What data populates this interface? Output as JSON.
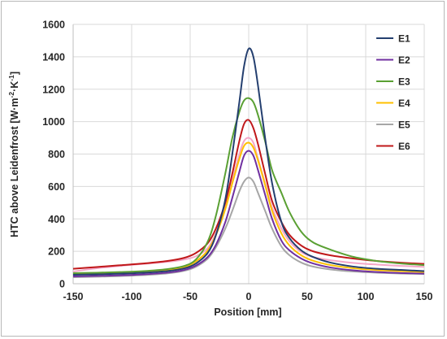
{
  "chart_data": {
    "type": "line",
    "title": "",
    "xlabel": "Position [mm]",
    "ylabel_parts": {
      "prefix": "HTC above Leidenfrost [W·m",
      "exp1": "-2",
      "middle": "·K",
      "exp2": "-1",
      "suffix": "]"
    },
    "xlim": [
      -150,
      150
    ],
    "ylim": [
      0,
      1600
    ],
    "xticks": [
      -150,
      -100,
      -50,
      0,
      50,
      100,
      150
    ],
    "yticks": [
      0,
      200,
      400,
      600,
      800,
      1000,
      1200,
      1400,
      1600
    ],
    "grid": true,
    "legend_position": "top-right",
    "x": [
      -150,
      -130,
      -110,
      -90,
      -70,
      -55,
      -45,
      -35,
      -28,
      -20,
      -14,
      -8,
      -4,
      0,
      4,
      8,
      14,
      20,
      28,
      35,
      45,
      55,
      70,
      90,
      110,
      130,
      150
    ],
    "series": [
      {
        "name": "E1",
        "color": "#243f6f",
        "values": [
          55,
          58,
          62,
          68,
          78,
          95,
          125,
          190,
          300,
          520,
          800,
          1120,
          1340,
          1450,
          1400,
          1220,
          900,
          620,
          380,
          280,
          205,
          165,
          130,
          105,
          92,
          85,
          78
        ]
      },
      {
        "name": "E2",
        "color": "#7030a0",
        "values": [
          45,
          48,
          52,
          58,
          68,
          85,
          112,
          165,
          240,
          380,
          530,
          690,
          790,
          820,
          790,
          700,
          550,
          400,
          265,
          205,
          155,
          125,
          100,
          82,
          72,
          66,
          62
        ]
      },
      {
        "name": "E3",
        "color": "#5aa033",
        "values": [
          65,
          68,
          72,
          78,
          90,
          110,
          150,
          260,
          420,
          680,
          900,
          1060,
          1130,
          1145,
          1120,
          1040,
          880,
          700,
          560,
          440,
          320,
          255,
          210,
          165,
          140,
          125,
          115
        ]
      },
      {
        "name": "E4",
        "color": "#ffc000",
        "values": [
          58,
          60,
          64,
          70,
          82,
          102,
          138,
          205,
          300,
          460,
          620,
          770,
          850,
          870,
          840,
          760,
          610,
          450,
          310,
          235,
          175,
          142,
          115,
          95,
          84,
          78,
          72
        ]
      },
      {
        "name": "E5",
        "color": "#a6a6a6",
        "values": [
          40,
          43,
          47,
          53,
          63,
          80,
          105,
          155,
          225,
          340,
          450,
          570,
          630,
          655,
          630,
          560,
          450,
          340,
          230,
          175,
          130,
          106,
          88,
          75,
          68,
          63,
          60
        ]
      },
      {
        "name": "E6",
        "color": "#c0181a",
        "values": [
          92,
          103,
          114,
          125,
          140,
          160,
          190,
          250,
          340,
          500,
          680,
          880,
          985,
          1010,
          960,
          860,
          680,
          510,
          380,
          300,
          235,
          200,
          175,
          155,
          140,
          130,
          122
        ]
      },
      {
        "name": "",
        "color": "#f4a7c8",
        "values": [
          75,
          95,
          110,
          122,
          135,
          150,
          170,
          220,
          310,
          470,
          640,
          800,
          880,
          900,
          870,
          770,
          620,
          470,
          340,
          260,
          195,
          165,
          145,
          128,
          118,
          110,
          104
        ]
      }
    ]
  }
}
